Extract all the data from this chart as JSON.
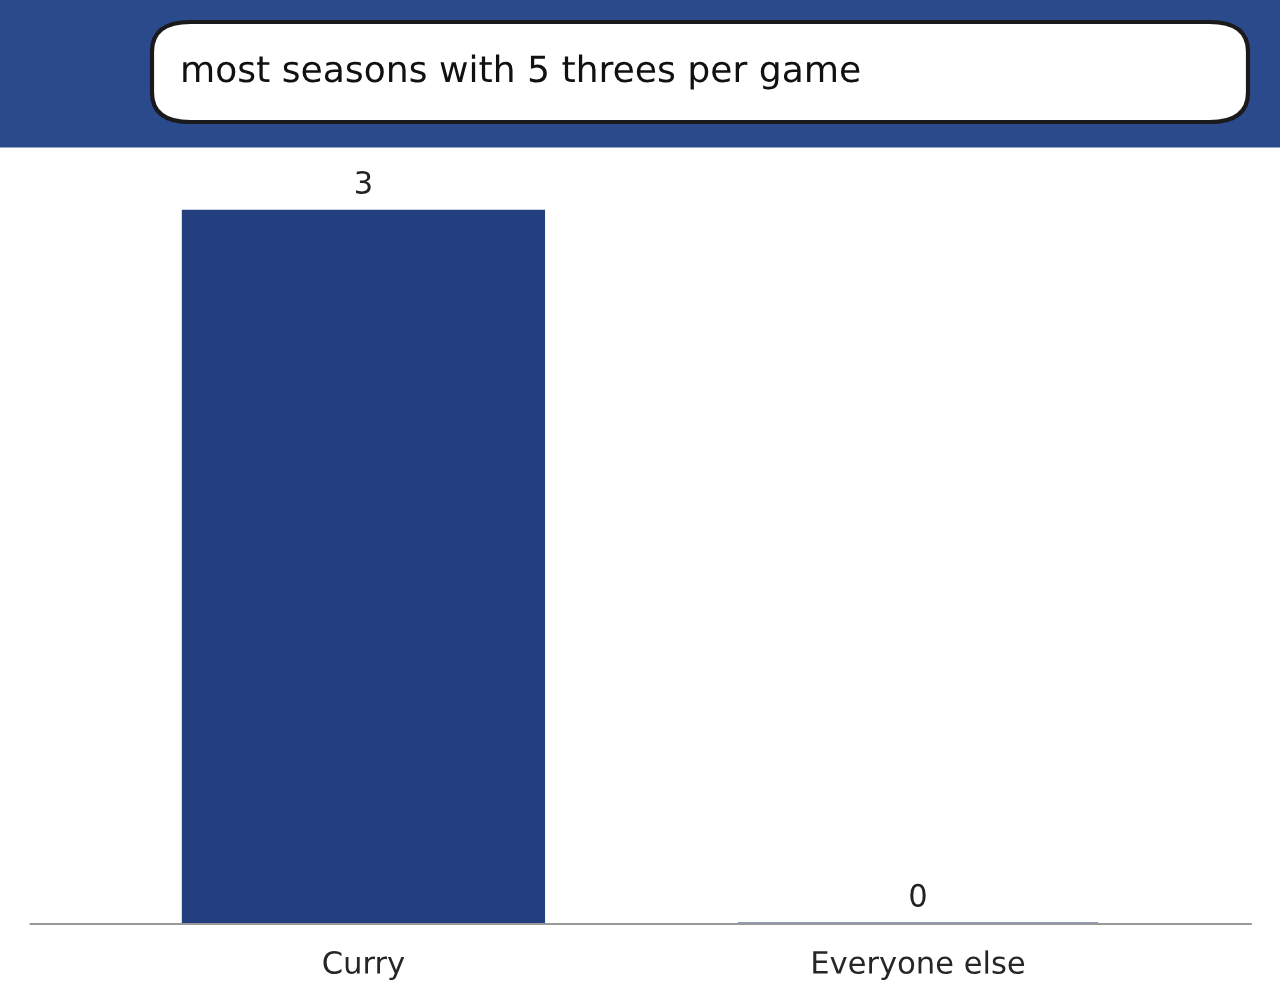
{
  "chart_data": {
    "type": "bar",
    "title": "most seasons with 5 threes per game",
    "categories": [
      "Curry",
      "Everyone else"
    ],
    "values": [
      3,
      0
    ],
    "color": "#233f7f",
    "data_labels": true,
    "grid": false,
    "legend": false
  }
}
